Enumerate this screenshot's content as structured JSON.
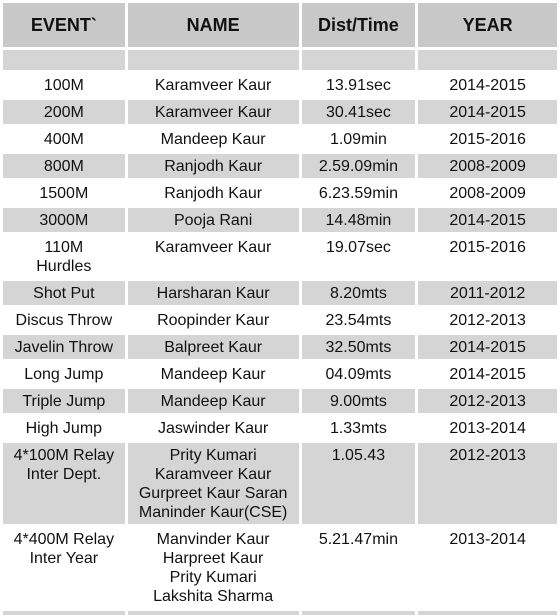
{
  "table": {
    "headers": [
      "EVENT`",
      "NAME",
      "Dist/Time",
      "YEAR"
    ],
    "rows": [
      {
        "event": [
          "100M"
        ],
        "name": [
          "Karamveer Kaur"
        ],
        "dist": "13.91sec",
        "year": "2014-2015"
      },
      {
        "event": [
          "200M"
        ],
        "name": [
          "Karamveer Kaur"
        ],
        "dist": "30.41sec",
        "year": "2014-2015"
      },
      {
        "event": [
          "400M"
        ],
        "name": [
          "Mandeep Kaur"
        ],
        "dist": "1.09min",
        "year": "2015-2016"
      },
      {
        "event": [
          "800M"
        ],
        "name": [
          "Ranjodh Kaur"
        ],
        "dist": "2.59.09min",
        "year": "2008-2009"
      },
      {
        "event": [
          "1500M"
        ],
        "name": [
          "Ranjodh Kaur"
        ],
        "dist": "6.23.59min",
        "year": "2008-2009"
      },
      {
        "event": [
          "3000M"
        ],
        "name": [
          "Pooja Rani"
        ],
        "dist": "14.48min",
        "year": "2014-2015"
      },
      {
        "event": [
          "110M",
          "Hurdles"
        ],
        "name": [
          "Karamveer Kaur"
        ],
        "dist": "19.07sec",
        "year": "2015-2016"
      },
      {
        "event": [
          "Shot Put"
        ],
        "name": [
          "Harsharan Kaur"
        ],
        "dist": "8.20mts",
        "year": "2011-2012"
      },
      {
        "event": [
          "Discus Throw"
        ],
        "name": [
          "Roopinder Kaur"
        ],
        "dist": "23.54mts",
        "year": "2012-2013"
      },
      {
        "event": [
          "Javelin Throw"
        ],
        "name": [
          "Balpreet Kaur"
        ],
        "dist": "32.50mts",
        "year": "2014-2015"
      },
      {
        "event": [
          "Long Jump"
        ],
        "name": [
          "Mandeep Kaur"
        ],
        "dist": "04.09mts",
        "year": "2014-2015"
      },
      {
        "event": [
          "Triple Jump"
        ],
        "name": [
          "Mandeep Kaur"
        ],
        "dist": "9.00mts",
        "year": "2012-2013"
      },
      {
        "event": [
          "High Jump"
        ],
        "name": [
          "Jaswinder Kaur"
        ],
        "dist": "1.33mts",
        "year": "2013-2014"
      },
      {
        "event": [
          "4*100M Relay",
          "Inter Dept."
        ],
        "name": [
          "Prity Kumari",
          "Karamveer Kaur",
          "Gurpreet Kaur Saran",
          "Maninder Kaur(CSE)"
        ],
        "dist": "1.05.43",
        "year": "2012-2013"
      },
      {
        "event": [
          "4*400M Relay",
          "Inter Year"
        ],
        "name": [
          "Manvinder Kaur",
          "Harpreet Kaur",
          "Prity Kumari",
          "Lakshita Sharma"
        ],
        "dist": "5.21.47min",
        "year": "2013-2014"
      }
    ]
  }
}
